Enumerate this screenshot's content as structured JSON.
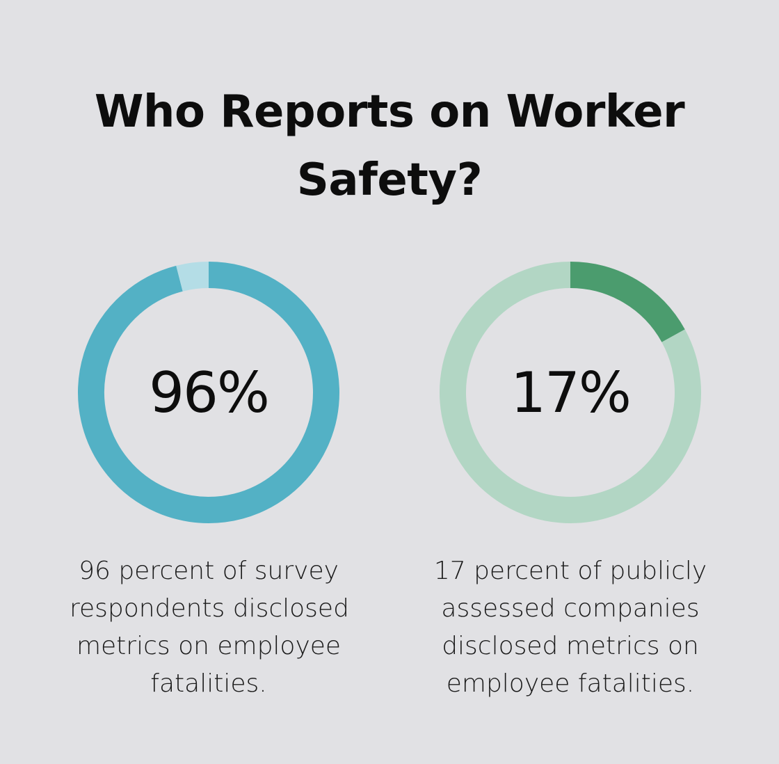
{
  "title": {
    "line1": "Who Reports on Worker",
    "line2": "Safety?"
  },
  "chart_data": [
    {
      "type": "pie",
      "value_label": "96%",
      "values": [
        96,
        4
      ],
      "colors": [
        "#53b1c5",
        "#b4dde6"
      ],
      "description": [
        "96 percent of survey",
        "respondents disclosed",
        "metrics on employee",
        "fatalities."
      ]
    },
    {
      "type": "pie",
      "value_label": "17%",
      "values": [
        17,
        83
      ],
      "colors": [
        "#4b9c6e",
        "#b2d6c4"
      ],
      "description": [
        "17 percent of publicly",
        "assessed companies",
        "disclosed metrics on",
        "employee fatalities."
      ]
    }
  ]
}
